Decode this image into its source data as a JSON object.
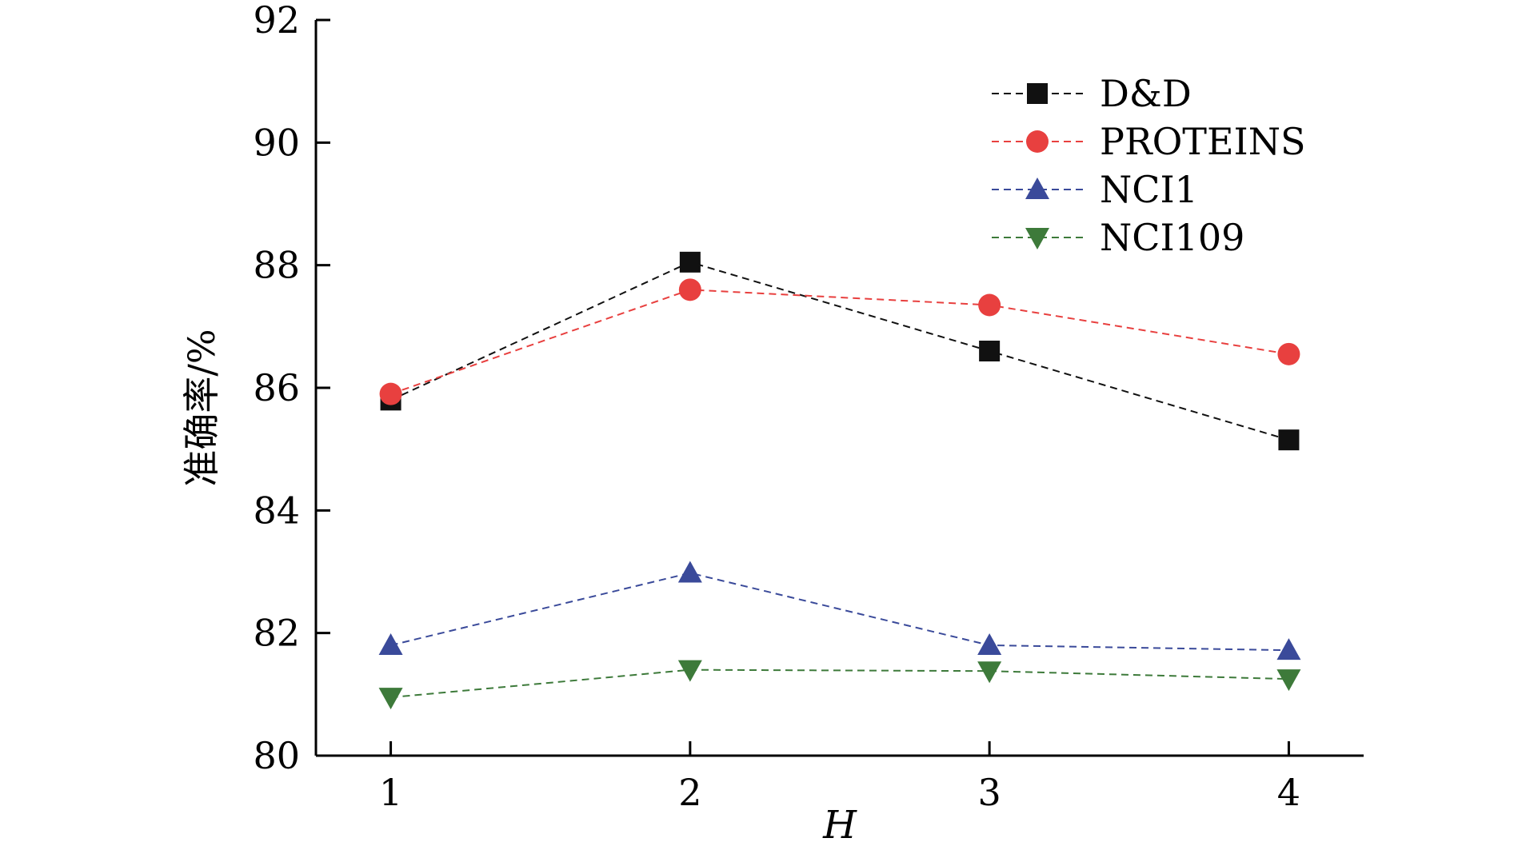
{
  "chart_data": {
    "type": "line",
    "title": "",
    "xlabel": "H",
    "ylabel": "准确率/%",
    "x": [
      1,
      2,
      3,
      4
    ],
    "xlim": [
      0.75,
      4.25
    ],
    "ylim": [
      80,
      92
    ],
    "xticks": [
      "1",
      "2",
      "3",
      "4"
    ],
    "yticks": [
      "80",
      "82",
      "84",
      "86",
      "88",
      "90",
      "92"
    ],
    "grid": false,
    "legend_position": "top-right",
    "line_style": "dashed",
    "series": [
      {
        "name": "D&D",
        "marker": "square",
        "color": "#111111",
        "values": [
          85.8,
          88.05,
          86.6,
          85.15
        ]
      },
      {
        "name": "PROTEINS",
        "marker": "circle",
        "color": "#e8403f",
        "values": [
          85.9,
          87.6,
          87.35,
          86.55
        ]
      },
      {
        "name": "NCI1",
        "marker": "triangle-up",
        "color": "#3a4a9a",
        "values": [
          81.8,
          82.98,
          81.8,
          81.72
        ]
      },
      {
        "name": "NCI109",
        "marker": "triangle-down",
        "color": "#3d7a3a",
        "values": [
          80.95,
          81.4,
          81.38,
          81.25
        ]
      }
    ]
  }
}
